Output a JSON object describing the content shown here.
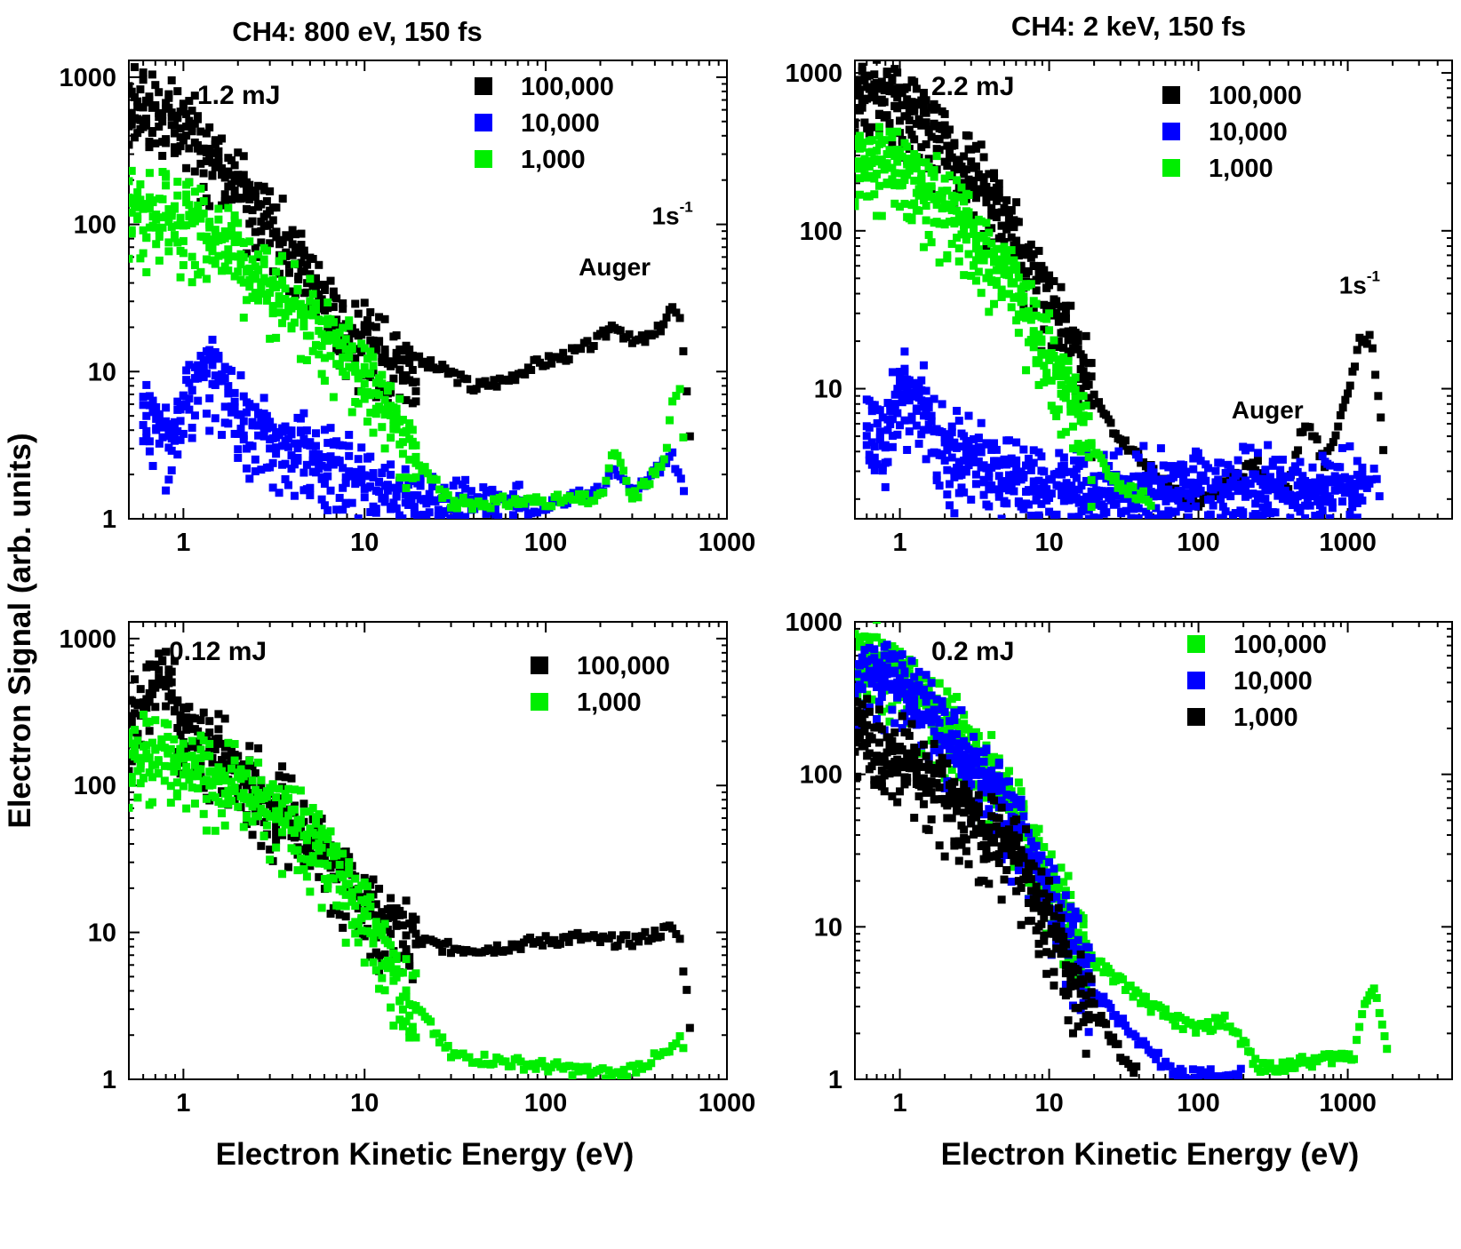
{
  "figure": {
    "ylabel": "Electron Signal (arb. units)",
    "xlabel": "Electron Kinetic Energy (eV)",
    "column_titles": [
      "CH4:  800 eV, 150 fs",
      "CH4:  2 keV, 150 fs"
    ]
  },
  "chart_data": [
    {
      "type": "scatter",
      "panel": "top-left",
      "label": "1.2 mJ",
      "xscale": "log",
      "yscale": "log",
      "xlim": [
        0.5,
        1000
      ],
      "ylim": [
        1,
        1300
      ],
      "xticks": [
        {
          "v": 1,
          "t": "1"
        },
        {
          "v": 10,
          "t": "10"
        },
        {
          "v": 100,
          "t": "100"
        },
        {
          "v": 1000,
          "t": "1000"
        }
      ],
      "yticks": [
        {
          "v": 1,
          "t": "1"
        },
        {
          "v": 10,
          "t": "10"
        },
        {
          "v": 100,
          "t": "100"
        },
        {
          "v": 1000,
          "t": "1000"
        }
      ],
      "legend_position": "top-right",
      "annotations": [
        {
          "text": "Auger",
          "x": 240,
          "y": 45
        },
        {
          "text": "1s",
          "sup": "-1",
          "x": 500,
          "y": 100
        }
      ],
      "series": [
        {
          "name": "100,000",
          "color": "#000000",
          "points": [
            [
              0.5,
              700
            ],
            [
              0.6,
              800
            ],
            [
              0.7,
              650
            ],
            [
              0.8,
              600
            ],
            [
              1,
              500
            ],
            [
              1.2,
              420
            ],
            [
              1.5,
              330
            ],
            [
              2,
              200
            ],
            [
              3,
              120
            ],
            [
              4,
              70
            ],
            [
              5,
              48
            ],
            [
              7,
              25
            ],
            [
              10,
              18
            ],
            [
              15,
              14
            ],
            [
              20,
              12
            ],
            [
              30,
              10
            ],
            [
              40,
              8
            ],
            [
              60,
              9
            ],
            [
              80,
              11
            ],
            [
              100,
              12
            ],
            [
              150,
              14
            ],
            [
              200,
              17
            ],
            [
              240,
              22
            ],
            [
              300,
              16
            ],
            [
              400,
              18
            ],
            [
              500,
              28
            ],
            [
              550,
              22
            ],
            [
              600,
              8
            ],
            [
              650,
              2
            ]
          ]
        },
        {
          "name": "10,000",
          "color": "#0000ff",
          "points": [
            [
              0.6,
              6
            ],
            [
              0.8,
              4
            ],
            [
              1,
              8
            ],
            [
              1.5,
              12
            ],
            [
              2,
              6
            ],
            [
              3,
              4
            ],
            [
              5,
              3
            ],
            [
              7,
              2.5
            ],
            [
              10,
              2
            ],
            [
              15,
              1.3
            ],
            [
              80,
              1.2
            ],
            [
              200,
              1.6
            ],
            [
              240,
              2.2
            ],
            [
              300,
              1.5
            ],
            [
              500,
              2.8
            ],
            [
              600,
              1.3
            ]
          ]
        },
        {
          "name": "1,000",
          "color": "#00ee00",
          "points": [
            [
              0.5,
              150
            ],
            [
              0.6,
              130
            ],
            [
              0.8,
              140
            ],
            [
              1,
              120
            ],
            [
              1.5,
              90
            ],
            [
              2,
              70
            ],
            [
              3,
              45
            ],
            [
              5,
              28
            ],
            [
              7,
              18
            ],
            [
              10,
              10
            ],
            [
              15,
              5
            ],
            [
              20,
              2.5
            ],
            [
              30,
              1.3
            ],
            [
              200,
              1.4
            ],
            [
              240,
              3
            ],
            [
              300,
              1.4
            ],
            [
              450,
              2.5
            ],
            [
              500,
              6
            ],
            [
              550,
              7.5
            ],
            [
              600,
              2
            ]
          ]
        }
      ]
    },
    {
      "type": "scatter",
      "panel": "top-right",
      "label": "2.2 mJ",
      "xscale": "log",
      "yscale": "log",
      "xlim": [
        0.5,
        5000
      ],
      "ylim": [
        1.5,
        1200
      ],
      "xticks": [
        {
          "v": 1,
          "t": "1"
        },
        {
          "v": 10,
          "t": "10"
        },
        {
          "v": 100,
          "t": "100"
        },
        {
          "v": 1000,
          "t": "1000"
        }
      ],
      "yticks": [
        {
          "v": 10,
          "t": "10"
        },
        {
          "v": 100,
          "t": "100"
        },
        {
          "v": 1000,
          "t": "1000"
        }
      ],
      "legend_position": "top-right",
      "annotations": [
        {
          "text": "Auger",
          "x": 290,
          "y": 6.5
        },
        {
          "text": "1s",
          "sup": "-1",
          "x": 1200,
          "y": 40
        }
      ],
      "series": [
        {
          "name": "100,000",
          "color": "#000000",
          "points": [
            [
              0.5,
              800
            ],
            [
              0.7,
              900
            ],
            [
              1,
              700
            ],
            [
              1.5,
              550
            ],
            [
              2,
              420
            ],
            [
              3,
              250
            ],
            [
              5,
              130
            ],
            [
              7,
              70
            ],
            [
              10,
              40
            ],
            [
              15,
              20
            ],
            [
              20,
              9
            ],
            [
              30,
              5
            ],
            [
              50,
              3
            ],
            [
              70,
              2.2
            ],
            [
              100,
              2
            ],
            [
              150,
              2.5
            ],
            [
              200,
              3
            ],
            [
              250,
              3.5
            ],
            [
              300,
              2.5
            ],
            [
              400,
              2.5
            ],
            [
              500,
              6
            ],
            [
              600,
              5
            ],
            [
              700,
              3.5
            ],
            [
              800,
              5
            ],
            [
              1000,
              10
            ],
            [
              1200,
              20
            ],
            [
              1400,
              22
            ],
            [
              1600,
              10
            ],
            [
              1800,
              3
            ]
          ]
        },
        {
          "name": "10,000",
          "color": "#0000ff",
          "points": [
            [
              0.6,
              6
            ],
            [
              0.8,
              5
            ],
            [
              1,
              12
            ],
            [
              1.5,
              8
            ],
            [
              2,
              5
            ],
            [
              3,
              4
            ],
            [
              5,
              3
            ],
            [
              7,
              3
            ],
            [
              10,
              2.5
            ],
            [
              1300,
              2.5
            ],
            [
              1500,
              3
            ],
            [
              1700,
              2
            ]
          ]
        },
        {
          "name": "1,000",
          "color": "#00ee00",
          "points": [
            [
              0.5,
              300
            ],
            [
              0.7,
              350
            ],
            [
              1,
              250
            ],
            [
              1.5,
              200
            ],
            [
              2,
              150
            ],
            [
              3,
              100
            ],
            [
              5,
              60
            ],
            [
              7,
              35
            ],
            [
              10,
              18
            ],
            [
              15,
              8
            ],
            [
              20,
              4
            ],
            [
              30,
              2.5
            ],
            [
              50,
              2
            ]
          ]
        }
      ]
    },
    {
      "type": "scatter",
      "panel": "bottom-left",
      "label": "0.12 mJ",
      "xscale": "log",
      "yscale": "log",
      "xlim": [
        0.5,
        1000
      ],
      "ylim": [
        1,
        1300
      ],
      "xticks": [
        {
          "v": 1,
          "t": "1"
        },
        {
          "v": 10,
          "t": "10"
        },
        {
          "v": 100,
          "t": "100"
        },
        {
          "v": 1000,
          "t": "1000"
        }
      ],
      "yticks": [
        {
          "v": 1,
          "t": "1"
        },
        {
          "v": 10,
          "t": "10"
        },
        {
          "v": 100,
          "t": "100"
        },
        {
          "v": 1000,
          "t": "1000"
        }
      ],
      "legend_position": "top-right",
      "annotations": [],
      "series": [
        {
          "name": "100,000",
          "color": "#000000",
          "points": [
            [
              0.5,
              300
            ],
            [
              0.7,
              500
            ],
            [
              0.8,
              550
            ],
            [
              1,
              300
            ],
            [
              1.5,
              200
            ],
            [
              2,
              140
            ],
            [
              3,
              90
            ],
            [
              5,
              55
            ],
            [
              7,
              30
            ],
            [
              10,
              18
            ],
            [
              15,
              12
            ],
            [
              20,
              9
            ],
            [
              30,
              8
            ],
            [
              50,
              8
            ],
            [
              70,
              8.5
            ],
            [
              100,
              9
            ],
            [
              150,
              9.5
            ],
            [
              200,
              9
            ],
            [
              300,
              9
            ],
            [
              400,
              10
            ],
            [
              500,
              11
            ],
            [
              550,
              9
            ],
            [
              600,
              4
            ],
            [
              650,
              1.5
            ]
          ]
        },
        {
          "name": "1,000",
          "color": "#00ee00",
          "points": [
            [
              0.5,
              200
            ],
            [
              0.7,
              180
            ],
            [
              1,
              150
            ],
            [
              1.5,
              130
            ],
            [
              2,
              110
            ],
            [
              3,
              80
            ],
            [
              5,
              50
            ],
            [
              7,
              30
            ],
            [
              10,
              15
            ],
            [
              15,
              6
            ],
            [
              20,
              3
            ],
            [
              30,
              1.5
            ],
            [
              250,
              1.1
            ],
            [
              500,
              1.6
            ],
            [
              550,
              2
            ],
            [
              600,
              1.2
            ]
          ]
        }
      ]
    },
    {
      "type": "scatter",
      "panel": "bottom-right",
      "label": "0.2 mJ",
      "xscale": "log",
      "yscale": "log",
      "xlim": [
        0.5,
        5000
      ],
      "ylim": [
        1,
        1000
      ],
      "xticks": [
        {
          "v": 1,
          "t": "1"
        },
        {
          "v": 10,
          "t": "10"
        },
        {
          "v": 100,
          "t": "100"
        },
        {
          "v": 1000,
          "t": "1000"
        }
      ],
      "yticks": [
        {
          "v": 1,
          "t": "1"
        },
        {
          "v": 10,
          "t": "10"
        },
        {
          "v": 100,
          "t": "100"
        },
        {
          "v": 1000,
          "t": "1000"
        }
      ],
      "legend_position": "top-right",
      "annotations": [],
      "series": [
        {
          "name": "100,000",
          "color": "#00ee00",
          "points": [
            [
              0.5,
              500
            ],
            [
              0.7,
              600
            ],
            [
              1,
              500
            ],
            [
              1.5,
              350
            ],
            [
              2,
              250
            ],
            [
              3,
              160
            ],
            [
              5,
              90
            ],
            [
              7,
              45
            ],
            [
              10,
              22
            ],
            [
              15,
              10
            ],
            [
              20,
              6
            ],
            [
              30,
              4.5
            ],
            [
              50,
              3
            ],
            [
              70,
              2.5
            ],
            [
              100,
              2.2
            ],
            [
              150,
              2.5
            ],
            [
              200,
              1.8
            ],
            [
              250,
              1.2
            ],
            [
              1100,
              1.5
            ],
            [
              1300,
              3.5
            ],
            [
              1500,
              4
            ],
            [
              1700,
              2.5
            ],
            [
              1900,
              1.2
            ]
          ]
        },
        {
          "name": "10,000",
          "color": "#0000ff",
          "points": [
            [
              0.5,
              400
            ],
            [
              0.7,
              500
            ],
            [
              1,
              450
            ],
            [
              1.5,
              300
            ],
            [
              2,
              200
            ],
            [
              3,
              130
            ],
            [
              5,
              70
            ],
            [
              7,
              35
            ],
            [
              10,
              18
            ],
            [
              15,
              8
            ],
            [
              20,
              4
            ],
            [
              30,
              2.5
            ],
            [
              50,
              1.5
            ],
            [
              70,
              1.1
            ],
            [
              200,
              1.1
            ]
          ]
        },
        {
          "name": "1,000",
          "color": "#000000",
          "points": [
            [
              0.5,
              200
            ],
            [
              0.7,
              180
            ],
            [
              1,
              150
            ],
            [
              1.5,
              100
            ],
            [
              2,
              80
            ],
            [
              3,
              60
            ],
            [
              5,
              40
            ],
            [
              7,
              25
            ],
            [
              10,
              12
            ],
            [
              15,
              5
            ],
            [
              20,
              3
            ],
            [
              30,
              1.5
            ],
            [
              40,
              1.1
            ]
          ]
        }
      ]
    }
  ]
}
